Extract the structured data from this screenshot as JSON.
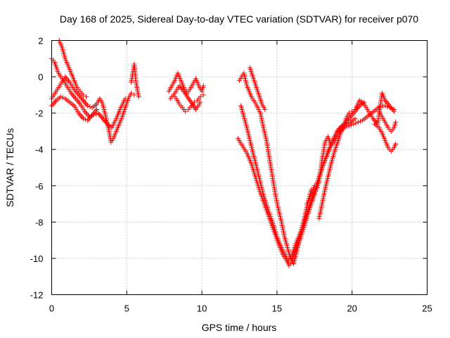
{
  "chart_data": {
    "type": "scatter",
    "title": "Day 168 of 2025, Sidereal Day-to-day VTEC variation (SDTVAR) for receiver p070",
    "xlabel": "GPS time / hours",
    "ylabel": "SDTVAR / TECUs",
    "xlim": [
      0,
      25
    ],
    "ylim": [
      -12,
      2
    ],
    "x_ticks": [
      "0",
      "5",
      "10",
      "15",
      "20",
      "25"
    ],
    "y_ticks": [
      "-12",
      "-10",
      "-8",
      "-6",
      "-4",
      "-2",
      "0",
      "2"
    ],
    "grid": true,
    "marker": "plus",
    "color": "#ff0000",
    "series": [
      {
        "points": [
          [
            0.0,
            -1.2
          ],
          [
            0.3,
            -0.8
          ],
          [
            0.6,
            -0.4
          ],
          [
            0.9,
            0.0
          ],
          [
            1.2,
            -0.3
          ],
          [
            1.5,
            -0.7
          ],
          [
            1.8,
            -1.0
          ],
          [
            2.1,
            -1.3
          ],
          [
            2.4,
            -1.6
          ],
          [
            2.7,
            -1.7
          ],
          [
            3.0,
            -1.5
          ],
          [
            3.2,
            -1.2
          ],
          [
            3.4,
            -1.5
          ],
          [
            3.6,
            -2.2
          ],
          [
            3.8,
            -2.9
          ],
          [
            3.95,
            -3.6
          ],
          [
            4.1,
            -3.4
          ],
          [
            4.3,
            -3.0
          ],
          [
            4.5,
            -2.6
          ],
          [
            4.7,
            -2.2
          ],
          [
            4.9,
            -1.7
          ],
          [
            5.1,
            -1.2
          ],
          [
            5.3,
            -0.9
          ],
          [
            5.5,
            -1.0
          ],
          [
            0.0,
            1.0
          ],
          [
            0.2,
            0.8
          ],
          [
            0.4,
            0.3
          ],
          [
            0.6,
            0.0
          ],
          [
            0.8,
            -0.2
          ],
          [
            1.0,
            -0.5
          ],
          [
            1.3,
            -0.9
          ],
          [
            1.6,
            -1.2
          ],
          [
            1.9,
            -1.5
          ],
          [
            2.2,
            -1.9
          ],
          [
            2.5,
            -2.2
          ],
          [
            2.8,
            -2.1
          ],
          [
            3.1,
            -2.0
          ],
          [
            3.4,
            -2.3
          ],
          [
            3.7,
            -2.6
          ],
          [
            4.0,
            -2.8
          ],
          [
            4.3,
            -2.3
          ],
          [
            4.6,
            -1.7
          ],
          [
            4.9,
            -1.2
          ],
          [
            0.0,
            -1.6
          ],
          [
            0.3,
            -1.3
          ],
          [
            0.6,
            -1.1
          ],
          [
            0.9,
            -1.2
          ],
          [
            1.2,
            -1.4
          ],
          [
            1.5,
            -1.6
          ],
          [
            1.8,
            -2.0
          ],
          [
            2.1,
            -2.3
          ],
          [
            2.4,
            -2.4
          ],
          [
            2.7,
            -2.1
          ],
          [
            3.0,
            -1.8
          ],
          [
            0.5,
            2.0
          ],
          [
            0.7,
            1.6
          ],
          [
            0.9,
            1.0
          ],
          [
            1.1,
            0.6
          ],
          [
            1.3,
            0.2
          ],
          [
            1.5,
            -0.2
          ],
          [
            1.7,
            -0.6
          ],
          [
            1.9,
            -0.8
          ],
          [
            2.1,
            -1.0
          ],
          [
            2.3,
            -1.1
          ],
          [
            5.3,
            -0.3
          ],
          [
            5.4,
            0.2
          ],
          [
            5.5,
            0.7
          ],
          [
            5.6,
            -0.2
          ],
          [
            5.7,
            -0.7
          ],
          [
            5.8,
            -1.1
          ],
          [
            7.8,
            -0.8
          ],
          [
            8.0,
            -0.5
          ],
          [
            8.2,
            -0.2
          ],
          [
            8.4,
            0.2
          ],
          [
            8.6,
            -0.2
          ],
          [
            8.8,
            -0.6
          ],
          [
            9.0,
            -0.9
          ],
          [
            9.2,
            -0.7
          ],
          [
            9.4,
            -0.4
          ],
          [
            9.6,
            -0.1
          ],
          [
            9.8,
            -0.5
          ],
          [
            10.0,
            -0.8
          ],
          [
            10.1,
            -0.5
          ],
          [
            7.9,
            -1.2
          ],
          [
            8.1,
            -1.0
          ],
          [
            8.3,
            -1.2
          ],
          [
            8.5,
            -1.5
          ],
          [
            8.7,
            -1.7
          ],
          [
            8.9,
            -1.9
          ],
          [
            9.1,
            -1.8
          ],
          [
            9.3,
            -1.6
          ],
          [
            9.5,
            -1.4
          ],
          [
            9.7,
            -1.3
          ],
          [
            9.9,
            -1.1
          ],
          [
            10.1,
            -1.0
          ],
          [
            8.2,
            -0.9
          ],
          [
            8.5,
            -0.5
          ],
          [
            8.8,
            -0.8
          ],
          [
            9.2,
            -1.3
          ],
          [
            9.6,
            -1.8
          ],
          [
            9.9,
            -1.4
          ],
          [
            12.5,
            -0.2
          ],
          [
            12.8,
            0.2
          ],
          [
            13.0,
            -0.5
          ],
          [
            13.3,
            -1.1
          ],
          [
            13.6,
            -1.5
          ],
          [
            13.9,
            -2.0
          ],
          [
            14.1,
            -2.8
          ],
          [
            14.3,
            -3.5
          ],
          [
            14.5,
            -4.5
          ],
          [
            14.7,
            -5.5
          ],
          [
            14.9,
            -6.5
          ],
          [
            15.1,
            -7.3
          ],
          [
            15.3,
            -8.0
          ],
          [
            15.5,
            -8.8
          ],
          [
            15.7,
            -9.4
          ],
          [
            15.9,
            -10.0
          ],
          [
            16.1,
            -10.3
          ],
          [
            16.3,
            -9.7
          ],
          [
            16.5,
            -9.0
          ],
          [
            16.7,
            -8.2
          ],
          [
            16.9,
            -7.5
          ],
          [
            17.1,
            -6.8
          ],
          [
            17.3,
            -6.2
          ],
          [
            12.6,
            -1.6
          ],
          [
            12.8,
            -2.2
          ],
          [
            13.0,
            -2.8
          ],
          [
            13.2,
            -3.5
          ],
          [
            13.5,
            -4.5
          ],
          [
            13.8,
            -5.5
          ],
          [
            14.1,
            -6.5
          ],
          [
            14.4,
            -7.3
          ],
          [
            14.7,
            -8.0
          ],
          [
            15.0,
            -8.8
          ],
          [
            15.3,
            -9.4
          ],
          [
            15.6,
            -9.9
          ],
          [
            15.8,
            -10.4
          ],
          [
            16.0,
            -10.2
          ],
          [
            16.3,
            -9.3
          ],
          [
            16.6,
            -8.5
          ],
          [
            16.9,
            -7.8
          ],
          [
            17.2,
            -7.0
          ],
          [
            17.5,
            -6.3
          ],
          [
            17.8,
            -5.6
          ],
          [
            18.1,
            -4.8
          ],
          [
            18.4,
            -4.2
          ],
          [
            18.7,
            -3.6
          ],
          [
            19.0,
            -3.1
          ],
          [
            19.3,
            -2.8
          ],
          [
            19.6,
            -2.5
          ],
          [
            19.9,
            -2.2
          ],
          [
            20.2,
            -1.9
          ],
          [
            20.5,
            -1.6
          ],
          [
            20.8,
            -1.4
          ],
          [
            12.4,
            -3.4
          ],
          [
            12.7,
            -3.8
          ],
          [
            13.0,
            -4.2
          ],
          [
            13.3,
            -4.8
          ],
          [
            13.6,
            -5.6
          ],
          [
            13.9,
            -6.4
          ],
          [
            14.2,
            -7.1
          ],
          [
            14.5,
            -7.8
          ],
          [
            14.8,
            -8.5
          ],
          [
            15.1,
            -9.2
          ],
          [
            15.4,
            -9.8
          ],
          [
            15.7,
            -10.2
          ],
          [
            16.0,
            -9.8
          ],
          [
            16.3,
            -9.1
          ],
          [
            16.6,
            -8.5
          ],
          [
            16.9,
            -7.8
          ],
          [
            17.2,
            -7.0
          ],
          [
            17.5,
            -6.3
          ],
          [
            17.8,
            -5.5
          ],
          [
            18.1,
            -4.8
          ],
          [
            18.4,
            -4.1
          ],
          [
            18.7,
            -3.5
          ],
          [
            19.0,
            -3.0
          ],
          [
            19.3,
            -2.7
          ],
          [
            19.6,
            -2.6
          ],
          [
            19.9,
            -2.5
          ],
          [
            20.2,
            -2.3
          ],
          [
            13.2,
            0.5
          ],
          [
            13.4,
            0.0
          ],
          [
            13.6,
            -0.5
          ],
          [
            13.8,
            -1.0
          ],
          [
            14.0,
            -1.5
          ],
          [
            14.2,
            -1.8
          ],
          [
            17.0,
            -7.0
          ],
          [
            17.3,
            -6.5
          ],
          [
            17.5,
            -6.0
          ],
          [
            16.0,
            -10.0
          ],
          [
            16.3,
            -9.5
          ],
          [
            16.6,
            -8.8
          ],
          [
            16.9,
            -8.0
          ],
          [
            17.2,
            -7.2
          ],
          [
            17.5,
            -6.5
          ],
          [
            17.8,
            -5.8
          ],
          [
            18.0,
            -4.6
          ],
          [
            18.2,
            -3.6
          ],
          [
            18.4,
            -3.3
          ],
          [
            18.6,
            -3.8
          ],
          [
            18.8,
            -3.6
          ],
          [
            19.0,
            -3.3
          ],
          [
            19.2,
            -3.0
          ],
          [
            19.5,
            -2.8
          ],
          [
            19.8,
            -2.7
          ],
          [
            20.1,
            -2.6
          ],
          [
            20.4,
            -2.5
          ],
          [
            20.7,
            -2.4
          ],
          [
            21.0,
            -2.2
          ],
          [
            21.3,
            -2.0
          ],
          [
            21.6,
            -1.8
          ],
          [
            21.9,
            -1.6
          ],
          [
            22.2,
            -1.6
          ],
          [
            22.5,
            -1.7
          ],
          [
            22.8,
            -1.8
          ],
          [
            17.8,
            -7.8
          ],
          [
            18.0,
            -7.0
          ],
          [
            18.2,
            -6.2
          ],
          [
            18.4,
            -5.5
          ],
          [
            18.6,
            -4.8
          ],
          [
            18.8,
            -4.2
          ],
          [
            19.0,
            -3.7
          ],
          [
            19.2,
            -3.2
          ],
          [
            19.4,
            -2.8
          ],
          [
            19.6,
            -2.3
          ],
          [
            19.8,
            -2.0
          ],
          [
            20.0,
            -1.9
          ],
          [
            20.2,
            -1.8
          ],
          [
            20.5,
            -1.3
          ],
          [
            20.8,
            -1.5
          ],
          [
            21.1,
            -1.9
          ],
          [
            21.4,
            -2.3
          ],
          [
            21.7,
            -2.6
          ],
          [
            21.9,
            -1.5
          ],
          [
            22.0,
            -0.9
          ],
          [
            22.2,
            -1.3
          ],
          [
            22.5,
            -1.6
          ],
          [
            22.8,
            -1.9
          ],
          [
            21.5,
            -2.6
          ],
          [
            21.8,
            -2.8
          ],
          [
            22.0,
            -3.1
          ],
          [
            22.2,
            -3.5
          ],
          [
            22.4,
            -3.9
          ],
          [
            22.6,
            -4.1
          ],
          [
            22.8,
            -3.9
          ],
          [
            22.9,
            -3.7
          ],
          [
            21.8,
            -1.9
          ],
          [
            22.0,
            -2.2
          ],
          [
            22.2,
            -2.5
          ],
          [
            22.4,
            -2.8
          ],
          [
            22.6,
            -3.0
          ],
          [
            22.8,
            -2.8
          ],
          [
            22.9,
            -2.5
          ]
        ]
      }
    ]
  }
}
